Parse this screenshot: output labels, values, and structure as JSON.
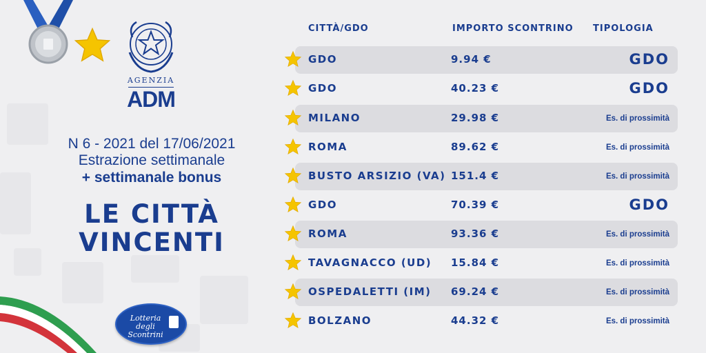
{
  "brand": {
    "agency_label": "AGENZIA",
    "agency_name": "ADM",
    "lottery_logo_text": "Lotteria degli Scontrini"
  },
  "edition": {
    "line1": "N 6 - 2021 del 17/06/2021",
    "line2": "Estrazione settimanale",
    "bonus": "+ settimanale bonus"
  },
  "headline": {
    "line1": "LE CITTÀ",
    "line2": "VINCENTI"
  },
  "table": {
    "headers": {
      "city": "CITTÀ/GDO",
      "amount": "IMPORTO SCONTRINO",
      "type": "TIPOLOGIA"
    },
    "rows": [
      {
        "city": "GDO",
        "amount": "9.94 €",
        "type": "GDO"
      },
      {
        "city": "GDO",
        "amount": "40.23 €",
        "type": "GDO"
      },
      {
        "city": "MILANO",
        "amount": "29.98 €",
        "type": "Es. di prossimità"
      },
      {
        "city": "ROMA",
        "amount": "89.62 €",
        "type": "Es. di prossimità"
      },
      {
        "city": "BUSTO ARSIZIO (VA)",
        "amount": "151.4 €",
        "type": "Es. di prossimità"
      },
      {
        "city": "GDO",
        "amount": "70.39 €",
        "type": "GDO"
      },
      {
        "city": "ROMA",
        "amount": "93.36 €",
        "type": "Es. di prossimità"
      },
      {
        "city": "TAVAGNACCO (UD)",
        "amount": "15.84 €",
        "type": "Es. di prossimità"
      },
      {
        "city": "OSPEDALETTI (IM)",
        "amount": "69.24 €",
        "type": "Es. di prossimità"
      },
      {
        "city": "BOLZANO",
        "amount": "44.32 €",
        "type": "Es. di prossimità"
      }
    ]
  },
  "icons": {
    "medal": "medal-icon",
    "star": "star-icon",
    "emblem": "italian-republic-emblem-icon"
  },
  "colors": {
    "primary": "#1a3d8f",
    "background": "#efeff1",
    "row_highlight": "#dcdce0",
    "star": "#f5c400"
  }
}
